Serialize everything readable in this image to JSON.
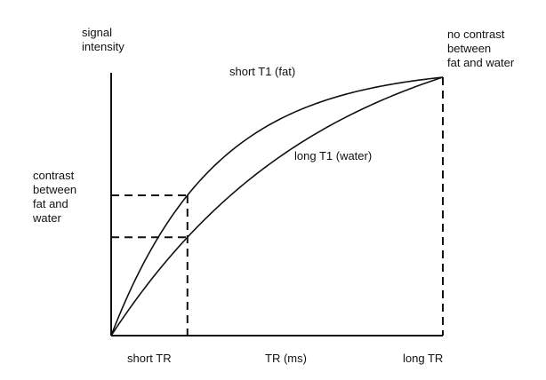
{
  "chart_data": {
    "type": "line",
    "title": "",
    "ylabel": [
      "signal",
      "intensity"
    ],
    "xlabel": "TR (ms)",
    "x_ticks": [
      "short TR",
      "long TR"
    ],
    "series": [
      {
        "name": "short T1 (fat)",
        "k": 3.2
      },
      {
        "name": "long T1 (water)",
        "k": 1.55
      }
    ],
    "annotations": {
      "contrast": [
        "contrast",
        "between",
        "fat and",
        "water"
      ],
      "no_contrast": [
        "no contrast",
        "between",
        "fat and water"
      ]
    },
    "short_tr_fraction": 0.23,
    "grid": false
  }
}
